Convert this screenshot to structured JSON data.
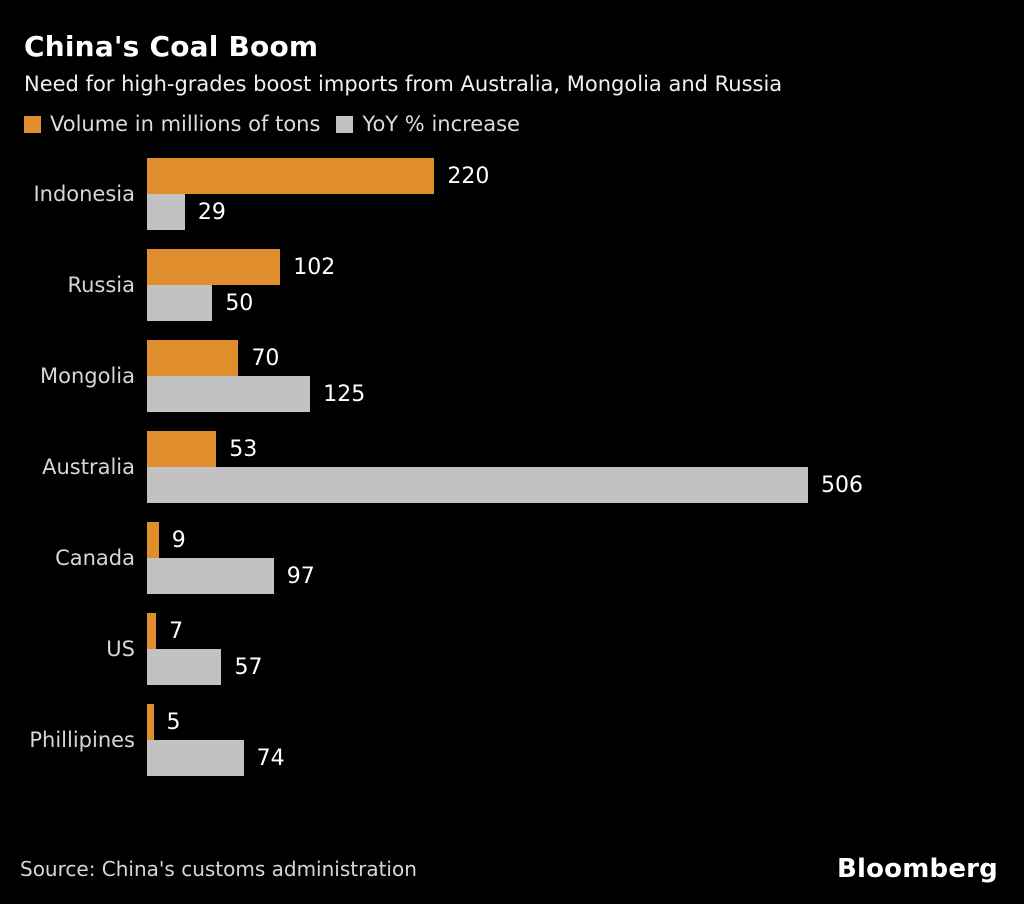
{
  "header": {
    "title": "China's Coal Boom",
    "subtitle": "Need for high-grades boost imports from Australia, Mongolia and Russia"
  },
  "legend": [
    {
      "label": "Volume in millions of tons",
      "color": "#E08E2D"
    },
    {
      "label": "YoY % increase",
      "color": "#C2C2C2"
    }
  ],
  "chart_data": {
    "type": "bar",
    "orientation": "horizontal",
    "title": "China's Coal Boom",
    "subtitle": "Need for high-grades boost imports from Australia, Mongolia and Russia",
    "categories": [
      "Indonesia",
      "Russia",
      "Mongolia",
      "Australia",
      "Canada",
      "US",
      "Phillipines"
    ],
    "series": [
      {
        "name": "Volume in millions of tons",
        "color": "#E08E2D",
        "values": [
          220,
          102,
          70,
          53,
          9,
          7,
          5
        ]
      },
      {
        "name": "YoY % increase",
        "color": "#C2C2C2",
        "values": [
          29,
          50,
          125,
          506,
          97,
          57,
          74
        ]
      }
    ],
    "xlim": [
      0,
      506
    ],
    "grid": false,
    "legend_position": "top-left",
    "value_labels": true,
    "background": "#000000"
  },
  "footer": {
    "source": "Source: China's customs administration",
    "brand": "Bloomberg"
  }
}
